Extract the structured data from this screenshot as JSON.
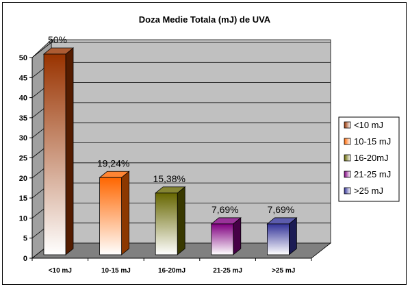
{
  "chart_data": {
    "type": "bar",
    "title": "Doza Medie Totala (mJ) de UVA",
    "categories": [
      "<10 mJ",
      "10-15 mJ",
      "16-20mJ",
      "21-25 mJ",
      ">25 mJ"
    ],
    "values": [
      50,
      19.24,
      15.38,
      7.69,
      7.69
    ],
    "data_labels": [
      "50%",
      "19,24%",
      "15,38%",
      "7,69%",
      "7,69%"
    ],
    "yticks": [
      "0",
      "5",
      "10",
      "15",
      "20",
      "25",
      "30",
      "35",
      "40",
      "45",
      "50"
    ],
    "ylim": [
      0,
      50
    ],
    "grid": true,
    "legend": {
      "position": "right",
      "entries": [
        "<10 mJ",
        "10-15 mJ",
        "16-20mJ",
        "21-25 mJ",
        ">25 mJ"
      ]
    },
    "colors": {
      "bars": [
        "#993300",
        "#FF6600",
        "#666600",
        "#800080",
        "#333399"
      ],
      "wall": "#C0C0C0",
      "floor": "#808080"
    }
  }
}
